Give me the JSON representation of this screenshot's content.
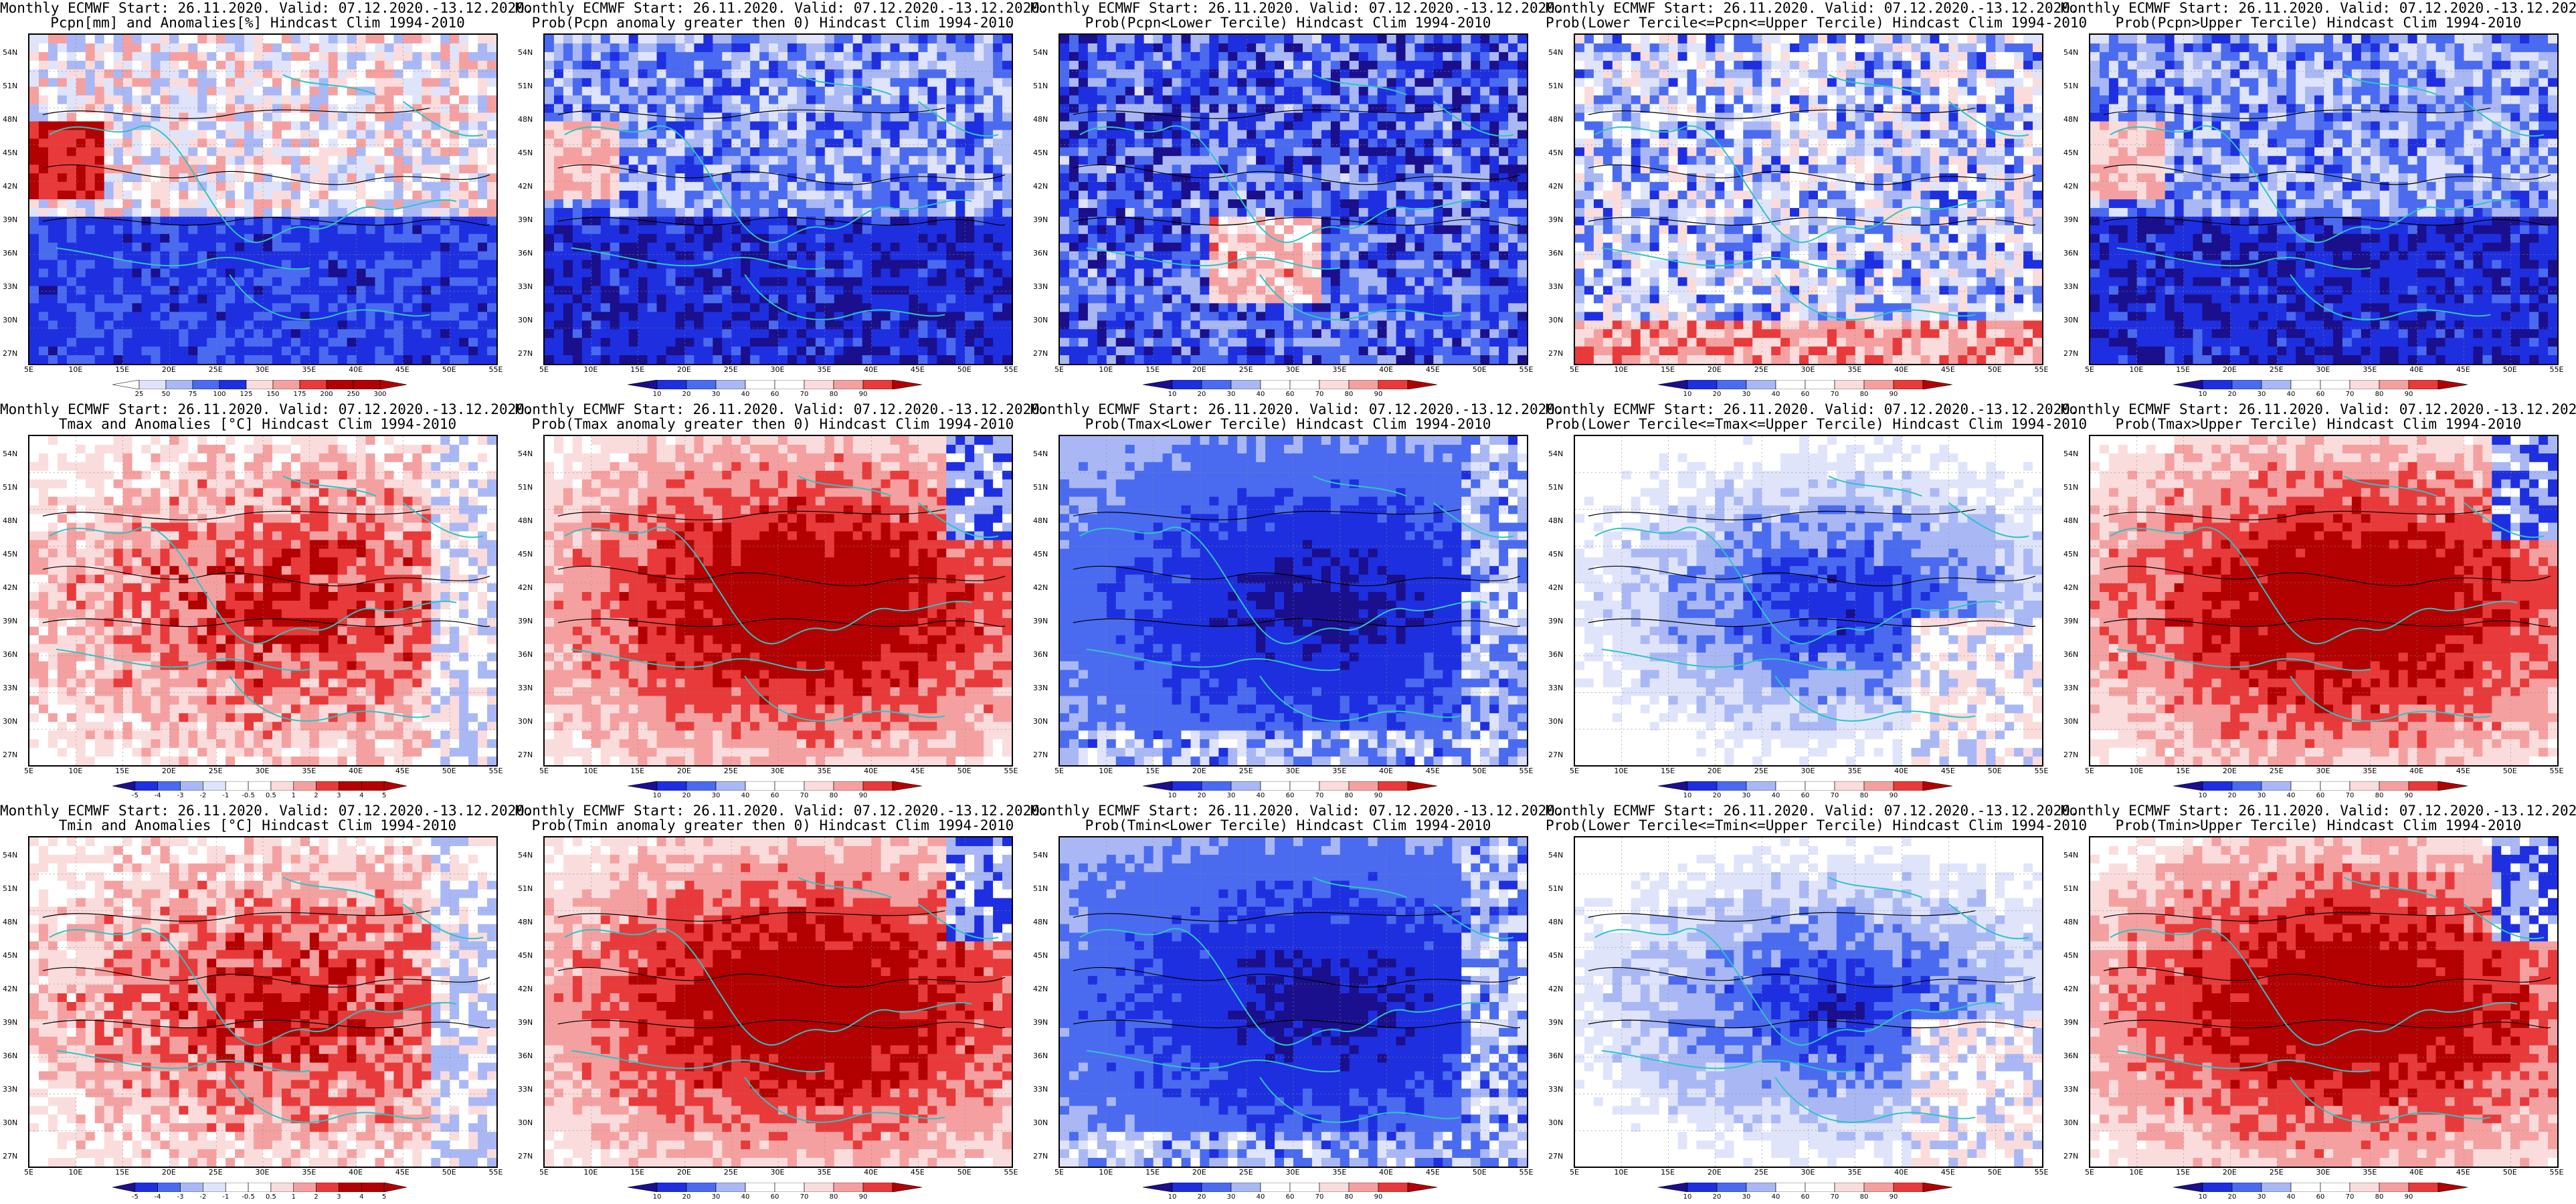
{
  "header_line": "Monthly ECMWF Start: 26.11.2020. Valid: 07.12.2020.-13.12.2020.",
  "lat_labels": [
    "54N",
    "51N",
    "48N",
    "45N",
    "42N",
    "39N",
    "36N",
    "33N",
    "30N",
    "27N"
  ],
  "lon_labels": [
    "5E",
    "10E",
    "15E",
    "20E",
    "25E",
    "30E",
    "35E",
    "40E",
    "45E",
    "50E",
    "55E"
  ],
  "colors": {
    "deep_blue": "#1a0f8c",
    "blue": "#1e2fe0",
    "mid_blue": "#4a6bf0",
    "light_blue": "#a9b8f5",
    "pale_blue": "#dfe4fb",
    "white": "#ffffff",
    "pale_red": "#fbdcdc",
    "light_red": "#f5a0a0",
    "red": "#e83a3a",
    "dark_red": "#b30000",
    "coast": "#2ec4c4",
    "contour": "#000000"
  },
  "colorbars": {
    "prcp_anom": {
      "labels": [
        "25",
        "50",
        "75",
        "100",
        "125",
        "150",
        "175",
        "200",
        "250",
        "300"
      ]
    },
    "prob": {
      "labels": [
        "10",
        "20",
        "30",
        "40",
        "60",
        "70",
        "80",
        "90"
      ]
    },
    "temp_anom": {
      "labels": [
        "-5",
        "-4",
        "-3",
        "-2",
        "-1",
        "-0.5",
        "0.5",
        "1",
        "2",
        "3",
        "4",
        "5"
      ]
    }
  },
  "rows": [
    {
      "name": "precipitation",
      "panels": [
        {
          "subtitle": "Pcpn[mm] and Anomalies[%] Hindcast Clim 1994-2010",
          "cbar": "prcp_anom",
          "scheme": "prcp"
        },
        {
          "subtitle": "Prob(Pcpn anomaly greater then 0) Hindcast Clim 1994-2010",
          "cbar": "prob",
          "scheme": "blue_mostly"
        },
        {
          "subtitle": "Prob(Pcpn<Lower Tercile) Hindcast Clim 1994-2010",
          "cbar": "prob",
          "scheme": "blue_red_band"
        },
        {
          "subtitle": "Prob(Lower Tercile<=Pcpn<=Upper Tercile) Hindcast Clim 1994-2010",
          "cbar": "prob",
          "scheme": "mixed_light"
        },
        {
          "subtitle": "Prob(Pcpn>Upper Tercile) Hindcast Clim 1994-2010",
          "cbar": "prob",
          "scheme": "blue_mostly"
        }
      ]
    },
    {
      "name": "tmax",
      "panels": [
        {
          "subtitle": "Tmax and Anomalies [°C] Hindcast Clim 1994-2010",
          "cbar": "temp_anom",
          "scheme": "red_light"
        },
        {
          "subtitle": "Prob(Tmax anomaly greater then 0) Hindcast Clim 1994-2010",
          "cbar": "prob",
          "scheme": "red_dark"
        },
        {
          "subtitle": "Prob(Tmax<Lower Tercile) Hindcast Clim 1994-2010",
          "cbar": "prob",
          "scheme": "blue_dark"
        },
        {
          "subtitle": "Prob(Lower Tercile<=Tmax<=Upper Tercile) Hindcast Clim 1994-2010",
          "cbar": "prob",
          "scheme": "blue_medium"
        },
        {
          "subtitle": "Prob(Tmax>Upper Tercile) Hindcast Clim 1994-2010",
          "cbar": "prob",
          "scheme": "red_dark"
        }
      ]
    },
    {
      "name": "tmin",
      "panels": [
        {
          "subtitle": "Tmin and Anomalies [°C] Hindcast Clim 1994-2010",
          "cbar": "temp_anom",
          "scheme": "red_light"
        },
        {
          "subtitle": "Prob(Tmin anomaly greater then 0) Hindcast Clim 1994-2010",
          "cbar": "prob",
          "scheme": "red_dark"
        },
        {
          "subtitle": "Prob(Tmin<Lower Tercile) Hindcast Clim 1994-2010",
          "cbar": "prob",
          "scheme": "blue_dark"
        },
        {
          "subtitle": "Prob(Lower Tercile<=Tmin<=Upper Tercile) Hindcast Clim 1994-2010",
          "cbar": "prob",
          "scheme": "blue_medium"
        },
        {
          "subtitle": "Prob(Tmin>Upper Tercile) Hindcast Clim 1994-2010",
          "cbar": "prob",
          "scheme": "red_dark"
        }
      ]
    }
  ]
}
